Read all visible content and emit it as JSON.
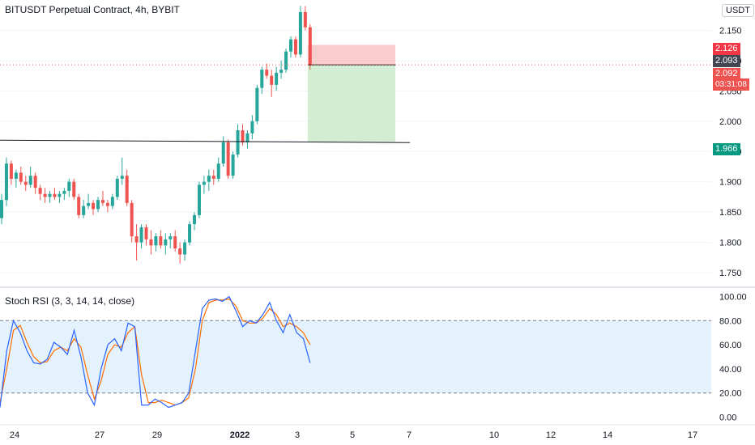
{
  "header": {
    "title": "BITUSDT Perpetual Contract, 4h, BYBIT",
    "currency": "USDT"
  },
  "indicator": {
    "title": "Stoch RSI (3, 3, 14, 14, close)"
  },
  "price_tags": {
    "stop": "2.126",
    "entry": "2.093",
    "last": "2.092",
    "countdown": "03:31:08",
    "target": "1.966"
  },
  "colors": {
    "up": "#26a69a",
    "down": "#ef5350",
    "k_line": "#2962ff",
    "d_line": "#ff6d00",
    "stop_zone": "#f8c8c8",
    "target_zone": "#cdebcc",
    "rsi_band": "#e3f2fd"
  },
  "chart_data": [
    {
      "type": "candlestick",
      "title": "BITUSDT Perpetual Contract, 4h, BYBIT",
      "y_ticks": [
        "2.150",
        "2.100",
        "2.050",
        "2.000",
        "1.950",
        "1.900",
        "1.850",
        "1.800",
        "1.750"
      ],
      "ylim": [
        1.73,
        2.2
      ],
      "x_ticks": [
        "24",
        "27",
        "29",
        "2022",
        "3",
        "5",
        "7",
        "10",
        "12",
        "14",
        "17"
      ],
      "ohlc": [
        [
          1.84,
          1.88,
          1.83,
          1.87
        ],
        [
          1.87,
          1.94,
          1.86,
          1.93
        ],
        [
          1.93,
          1.935,
          1.895,
          1.905
        ],
        [
          1.905,
          1.92,
          1.89,
          1.915
        ],
        [
          1.915,
          1.925,
          1.895,
          1.9
        ],
        [
          1.9,
          1.91,
          1.885,
          1.895
        ],
        [
          1.895,
          1.925,
          1.89,
          1.91
        ],
        [
          1.91,
          1.915,
          1.88,
          1.89
        ],
        [
          1.89,
          1.895,
          1.87,
          1.88
        ],
        [
          1.88,
          1.89,
          1.865,
          1.875
        ],
        [
          1.875,
          1.885,
          1.865,
          1.88
        ],
        [
          1.88,
          1.89,
          1.87,
          1.875
        ],
        [
          1.875,
          1.885,
          1.865,
          1.88
        ],
        [
          1.88,
          1.89,
          1.87,
          1.885
        ],
        [
          1.885,
          1.905,
          1.875,
          1.9
        ],
        [
          1.9,
          1.905,
          1.87,
          1.875
        ],
        [
          1.875,
          1.88,
          1.84,
          1.845
        ],
        [
          1.845,
          1.87,
          1.84,
          1.86
        ],
        [
          1.86,
          1.88,
          1.855,
          1.865
        ],
        [
          1.865,
          1.87,
          1.845,
          1.855
        ],
        [
          1.855,
          1.875,
          1.85,
          1.87
        ],
        [
          1.87,
          1.885,
          1.86,
          1.865
        ],
        [
          1.865,
          1.87,
          1.85,
          1.86
        ],
        [
          1.86,
          1.88,
          1.855,
          1.875
        ],
        [
          1.875,
          1.91,
          1.87,
          1.905
        ],
        [
          1.905,
          1.94,
          1.895,
          1.91
        ],
        [
          1.91,
          1.92,
          1.86,
          1.865
        ],
        [
          1.865,
          1.87,
          1.8,
          1.81
        ],
        [
          1.81,
          1.83,
          1.77,
          1.8
        ],
        [
          1.8,
          1.83,
          1.79,
          1.825
        ],
        [
          1.825,
          1.83,
          1.795,
          1.805
        ],
        [
          1.805,
          1.82,
          1.78,
          1.795
        ],
        [
          1.795,
          1.815,
          1.785,
          1.81
        ],
        [
          1.81,
          1.82,
          1.79,
          1.795
        ],
        [
          1.795,
          1.815,
          1.78,
          1.805
        ],
        [
          1.805,
          1.815,
          1.79,
          1.81
        ],
        [
          1.81,
          1.82,
          1.785,
          1.79
        ],
        [
          1.79,
          1.8,
          1.765,
          1.78
        ],
        [
          1.78,
          1.805,
          1.77,
          1.8
        ],
        [
          1.8,
          1.835,
          1.795,
          1.83
        ],
        [
          1.83,
          1.85,
          1.82,
          1.845
        ],
        [
          1.845,
          1.9,
          1.84,
          1.895
        ],
        [
          1.895,
          1.91,
          1.88,
          1.9
        ],
        [
          1.9,
          1.92,
          1.885,
          1.91
        ],
        [
          1.91,
          1.92,
          1.895,
          1.905
        ],
        [
          1.905,
          1.94,
          1.9,
          1.93
        ],
        [
          1.93,
          1.975,
          1.925,
          1.965
        ],
        [
          1.965,
          1.97,
          1.905,
          1.91
        ],
        [
          1.91,
          1.95,
          1.905,
          1.945
        ],
        [
          1.945,
          1.995,
          1.94,
          1.985
        ],
        [
          1.985,
          1.995,
          1.96,
          1.965
        ],
        [
          1.965,
          1.985,
          1.955,
          1.98
        ],
        [
          1.98,
          2.01,
          1.97,
          2.0
        ],
        [
          2.0,
          2.06,
          1.995,
          2.055
        ],
        [
          2.055,
          2.09,
          2.045,
          2.085
        ],
        [
          2.085,
          2.095,
          2.07,
          2.075
        ],
        [
          2.075,
          2.085,
          2.04,
          2.06
        ],
        [
          2.06,
          2.09,
          2.05,
          2.08
        ],
        [
          2.08,
          2.1,
          2.07,
          2.085
        ],
        [
          2.085,
          2.12,
          2.08,
          2.115
        ],
        [
          2.115,
          2.14,
          2.105,
          2.135
        ],
        [
          2.135,
          2.14,
          2.105,
          2.11
        ],
        [
          2.11,
          2.19,
          2.105,
          2.18
        ],
        [
          2.18,
          2.19,
          2.15,
          2.155
        ],
        [
          2.155,
          2.16,
          2.085,
          2.092
        ]
      ],
      "position": {
        "type": "short",
        "entry": 2.093,
        "stop": 2.126,
        "target": 1.966
      },
      "horizontal_line": 1.966
    },
    {
      "type": "line",
      "title": "Stoch RSI (3, 3, 14, 14, close)",
      "y_ticks": [
        "100.00",
        "80.00",
        "60.00",
        "40.00",
        "20.00",
        "0.00"
      ],
      "ylim": [
        -3,
        103
      ],
      "bands": [
        20,
        80
      ],
      "series": [
        {
          "name": "K",
          "values": [
            8,
            55,
            80,
            70,
            55,
            45,
            44,
            48,
            62,
            58,
            52,
            72,
            50,
            20,
            10,
            40,
            60,
            65,
            55,
            78,
            75,
            10,
            10,
            15,
            12,
            8,
            10,
            12,
            20,
            55,
            90,
            97,
            98,
            96,
            100,
            88,
            75,
            80,
            78,
            85,
            95,
            80,
            70,
            85,
            70,
            65,
            45
          ]
        },
        {
          "name": "D",
          "values": [
            12,
            40,
            72,
            76,
            62,
            50,
            45,
            46,
            55,
            58,
            55,
            65,
            58,
            35,
            15,
            30,
            52,
            60,
            58,
            70,
            75,
            35,
            12,
            12,
            14,
            12,
            10,
            12,
            16,
            40,
            80,
            95,
            97,
            97,
            98,
            92,
            80,
            78,
            78,
            82,
            90,
            85,
            75,
            78,
            75,
            70,
            60
          ]
        }
      ]
    }
  ]
}
